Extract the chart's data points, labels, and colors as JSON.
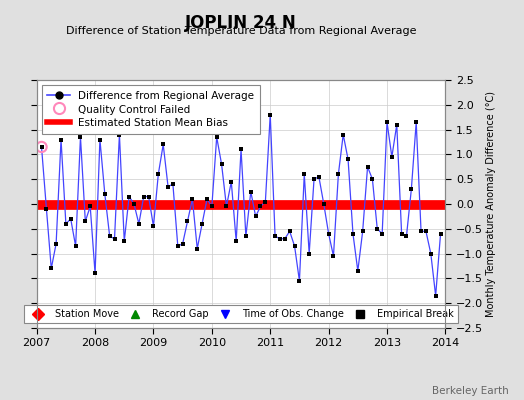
{
  "title": "JOPLIN 24 N",
  "subtitle": "Difference of Station Temperature Data from Regional Average",
  "ylabel_right": "Monthly Temperature Anomaly Difference (°C)",
  "xlim": [
    2007.0,
    2014.0
  ],
  "ylim": [
    -2.5,
    2.5
  ],
  "bias_value": -0.02,
  "background_color": "#e0e0e0",
  "plot_background": "#ffffff",
  "watermark": "Berkeley Earth",
  "x_data": [
    2007.083,
    2007.167,
    2007.25,
    2007.333,
    2007.417,
    2007.5,
    2007.583,
    2007.667,
    2007.75,
    2007.833,
    2007.917,
    2008.0,
    2008.083,
    2008.167,
    2008.25,
    2008.333,
    2008.417,
    2008.5,
    2008.583,
    2008.667,
    2008.75,
    2008.833,
    2008.917,
    2009.0,
    2009.083,
    2009.167,
    2009.25,
    2009.333,
    2009.417,
    2009.5,
    2009.583,
    2009.667,
    2009.75,
    2009.833,
    2009.917,
    2010.0,
    2010.083,
    2010.167,
    2010.25,
    2010.333,
    2010.417,
    2010.5,
    2010.583,
    2010.667,
    2010.75,
    2010.833,
    2010.917,
    2011.0,
    2011.083,
    2011.167,
    2011.25,
    2011.333,
    2011.417,
    2011.5,
    2011.583,
    2011.667,
    2011.75,
    2011.833,
    2011.917,
    2012.0,
    2012.083,
    2012.167,
    2012.25,
    2012.333,
    2012.417,
    2012.5,
    2012.583,
    2012.667,
    2012.75,
    2012.833,
    2012.917,
    2013.0,
    2013.083,
    2013.167,
    2013.25,
    2013.333,
    2013.417,
    2013.5,
    2013.583,
    2013.667,
    2013.75,
    2013.833,
    2013.917
  ],
  "y_data": [
    1.15,
    -0.1,
    -1.3,
    -0.8,
    1.3,
    -0.4,
    -0.3,
    -0.85,
    1.35,
    -0.35,
    -0.05,
    -1.4,
    1.3,
    0.2,
    -0.65,
    -0.7,
    1.4,
    -0.75,
    0.15,
    0.0,
    -0.4,
    0.15,
    0.15,
    -0.45,
    0.6,
    1.2,
    0.35,
    0.4,
    -0.85,
    -0.8,
    -0.35,
    0.1,
    -0.9,
    -0.4,
    0.1,
    -0.05,
    1.35,
    0.8,
    -0.05,
    0.45,
    -0.75,
    1.1,
    -0.65,
    0.25,
    -0.25,
    -0.05,
    0.05,
    1.8,
    -0.65,
    -0.7,
    -0.7,
    -0.55,
    -0.85,
    -1.55,
    0.6,
    -1.0,
    0.5,
    0.55,
    0.0,
    -0.6,
    -1.05,
    0.6,
    1.4,
    0.9,
    -0.6,
    -1.35,
    -0.55,
    0.75,
    0.5,
    -0.5,
    -0.6,
    1.65,
    0.95,
    1.6,
    -0.6,
    -0.65,
    0.3,
    1.65,
    -0.55,
    -0.55,
    -1.0,
    -1.85,
    -0.6
  ],
  "qc_failed_x": [
    2007.083
  ],
  "qc_failed_y": [
    1.15
  ],
  "line_color": "#4444ff",
  "dot_color": "#000000",
  "bias_color": "#ff0000",
  "qc_color": "#ff88bb",
  "legend1_items": [
    {
      "label": "Difference from Regional Average",
      "color": "#4444ff",
      "type": "line_dot"
    },
    {
      "label": "Quality Control Failed",
      "color": "#ff88bb",
      "type": "circle_open"
    },
    {
      "label": "Estimated Station Mean Bias",
      "color": "#ff0000",
      "type": "line_thick"
    }
  ],
  "legend2_items": [
    {
      "label": "Station Move",
      "color": "#ff0000",
      "marker": "D"
    },
    {
      "label": "Record Gap",
      "color": "#008800",
      "marker": "^"
    },
    {
      "label": "Time of Obs. Change",
      "color": "#0000ff",
      "marker": "v"
    },
    {
      "label": "Empirical Break",
      "color": "#000000",
      "marker": "s"
    }
  ],
  "xticks": [
    2007,
    2008,
    2009,
    2010,
    2011,
    2012,
    2013,
    2014
  ],
  "yticks": [
    -2.5,
    -2,
    -1.5,
    -1,
    -0.5,
    0,
    0.5,
    1,
    1.5,
    2,
    2.5
  ]
}
